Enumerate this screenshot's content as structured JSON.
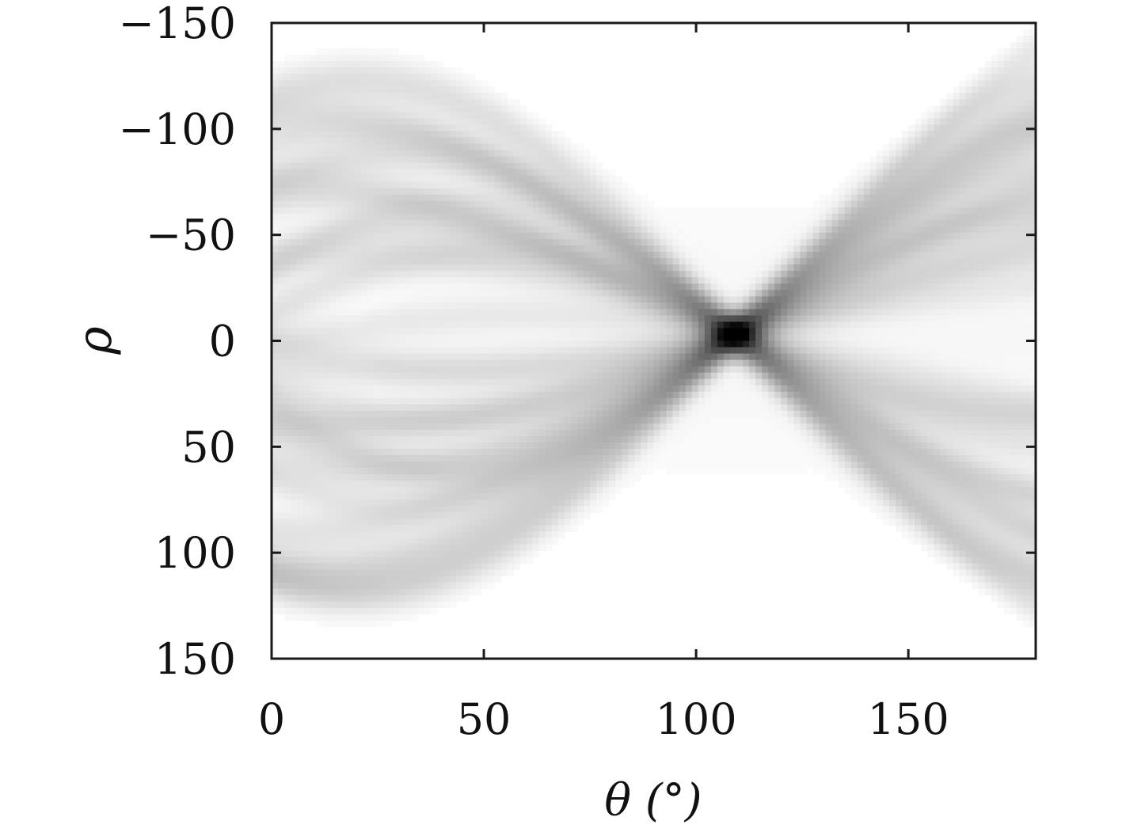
{
  "chart_data": {
    "type": "heatmap",
    "title": "",
    "xlabel": "θ (°)",
    "ylabel": "ρ",
    "xlim": [
      0,
      180
    ],
    "ylim": [
      150,
      -150
    ],
    "y_inverted": true,
    "colormap": "gray_r",
    "grid": false,
    "legend": "none",
    "xticks": [
      0,
      50,
      100,
      150
    ],
    "yticks": [
      -150,
      -100,
      -50,
      0,
      50,
      100,
      150
    ],
    "xtick_labels": [
      "0",
      "50",
      "100",
      "150"
    ],
    "ytick_labels": [
      "−150",
      "−100",
      "−50",
      "0",
      "50",
      "100",
      "150"
    ],
    "peak": {
      "theta": 109,
      "rho": -3
    },
    "sinusoids": [
      {
        "A": 125,
        "phi": 20,
        "w": 0.45
      },
      {
        "A": 122,
        "phi": 200,
        "w": 0.5
      },
      {
        "A": 110,
        "phi": 15,
        "w": 0.5
      },
      {
        "A": 105,
        "phi": 210,
        "w": 0.45
      },
      {
        "A": 95,
        "phi": 10,
        "w": 0.45
      },
      {
        "A": 90,
        "phi": 190,
        "w": 0.4
      },
      {
        "A": 85,
        "phi": 35,
        "w": 0.4
      },
      {
        "A": 80,
        "phi": 230,
        "w": 0.4
      },
      {
        "A": 75,
        "phi": 5,
        "w": 0.4
      },
      {
        "A": 70,
        "phi": 215,
        "w": 0.35
      },
      {
        "A": 62,
        "phi": 40,
        "w": 0.35
      },
      {
        "A": 55,
        "phi": 180,
        "w": 0.35
      },
      {
        "A": 48,
        "phi": 25,
        "w": 0.3
      },
      {
        "A": 42,
        "phi": 205,
        "w": 0.3
      },
      {
        "A": 35,
        "phi": 50,
        "w": 0.3
      },
      {
        "A": 28,
        "phi": 240,
        "w": 0.25
      },
      {
        "A": 118,
        "phi": 45,
        "w": 0.3
      },
      {
        "A": 112,
        "phi": 225,
        "w": 0.3
      },
      {
        "A": 100,
        "phi": 30,
        "w": 0.35
      },
      {
        "A": 98,
        "phi": 200,
        "w": 0.35
      },
      {
        "A": 66,
        "phi": 20,
        "w": 0.3
      },
      {
        "A": 60,
        "phi": 195,
        "w": 0.3
      },
      {
        "A": 40,
        "phi": 15,
        "w": 0.25
      },
      {
        "A": 22,
        "phi": 30,
        "w": 0.25
      }
    ]
  }
}
